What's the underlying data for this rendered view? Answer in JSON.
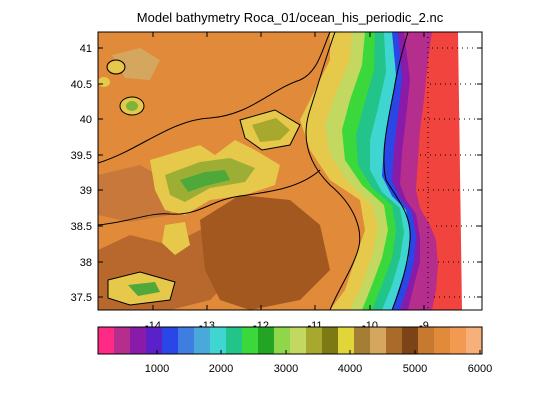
{
  "title": "Model bathymetry Roca_01/ocean_his_periodic_2.nc",
  "map": {
    "lon_range": [
      -14.9,
      -7.9
    ],
    "lat_range": [
      37.3,
      41.25
    ],
    "x_ticks": [
      "-14",
      "-13",
      "-12",
      "-11",
      "-10",
      "-9"
    ],
    "y_ticks": [
      "41",
      "40.5",
      "40",
      "39.5",
      "39",
      "38.5",
      "38",
      "37.5"
    ],
    "land_color": "#f2443f",
    "grid": "dotted, east side only"
  },
  "colorbar": {
    "ticks": [
      "1000",
      "2000",
      "3000",
      "4000",
      "5000",
      "6000"
    ],
    "range": [
      0,
      6000
    ],
    "colors": [
      "#ff2a85",
      "#b52d8d",
      "#8a1aa8",
      "#5a21c8",
      "#2b46e6",
      "#3f7de0",
      "#4aa9d8",
      "#3fd6d2",
      "#22c48a",
      "#3ad83a",
      "#23a523",
      "#8fd64a",
      "#c2d860",
      "#a7a92e",
      "#7d7a14",
      "#e0d63a",
      "#a47e34",
      "#d4a65e",
      "#aa6a2a",
      "#7b4316",
      "#c57a30",
      "#e08a3a",
      "#f29a52",
      "#f7b07a"
    ]
  },
  "chart_data": {
    "type": "heatmap",
    "title": "Model bathymetry Roca_01/ocean_his_periodic_2.nc",
    "x": [
      -14,
      -13,
      -12,
      -11,
      -10,
      -9
    ],
    "y": [
      41,
      40.5,
      40,
      39.5,
      39,
      38.5,
      38,
      37.5
    ],
    "xlim": [
      -14.9,
      -7.9
    ],
    "ylim": [
      37.3,
      41.25
    ],
    "colorbar_range": [
      0,
      6000
    ],
    "colorbar_ticks": [
      1000,
      2000,
      3000,
      4000,
      5000,
      6000
    ]
  }
}
